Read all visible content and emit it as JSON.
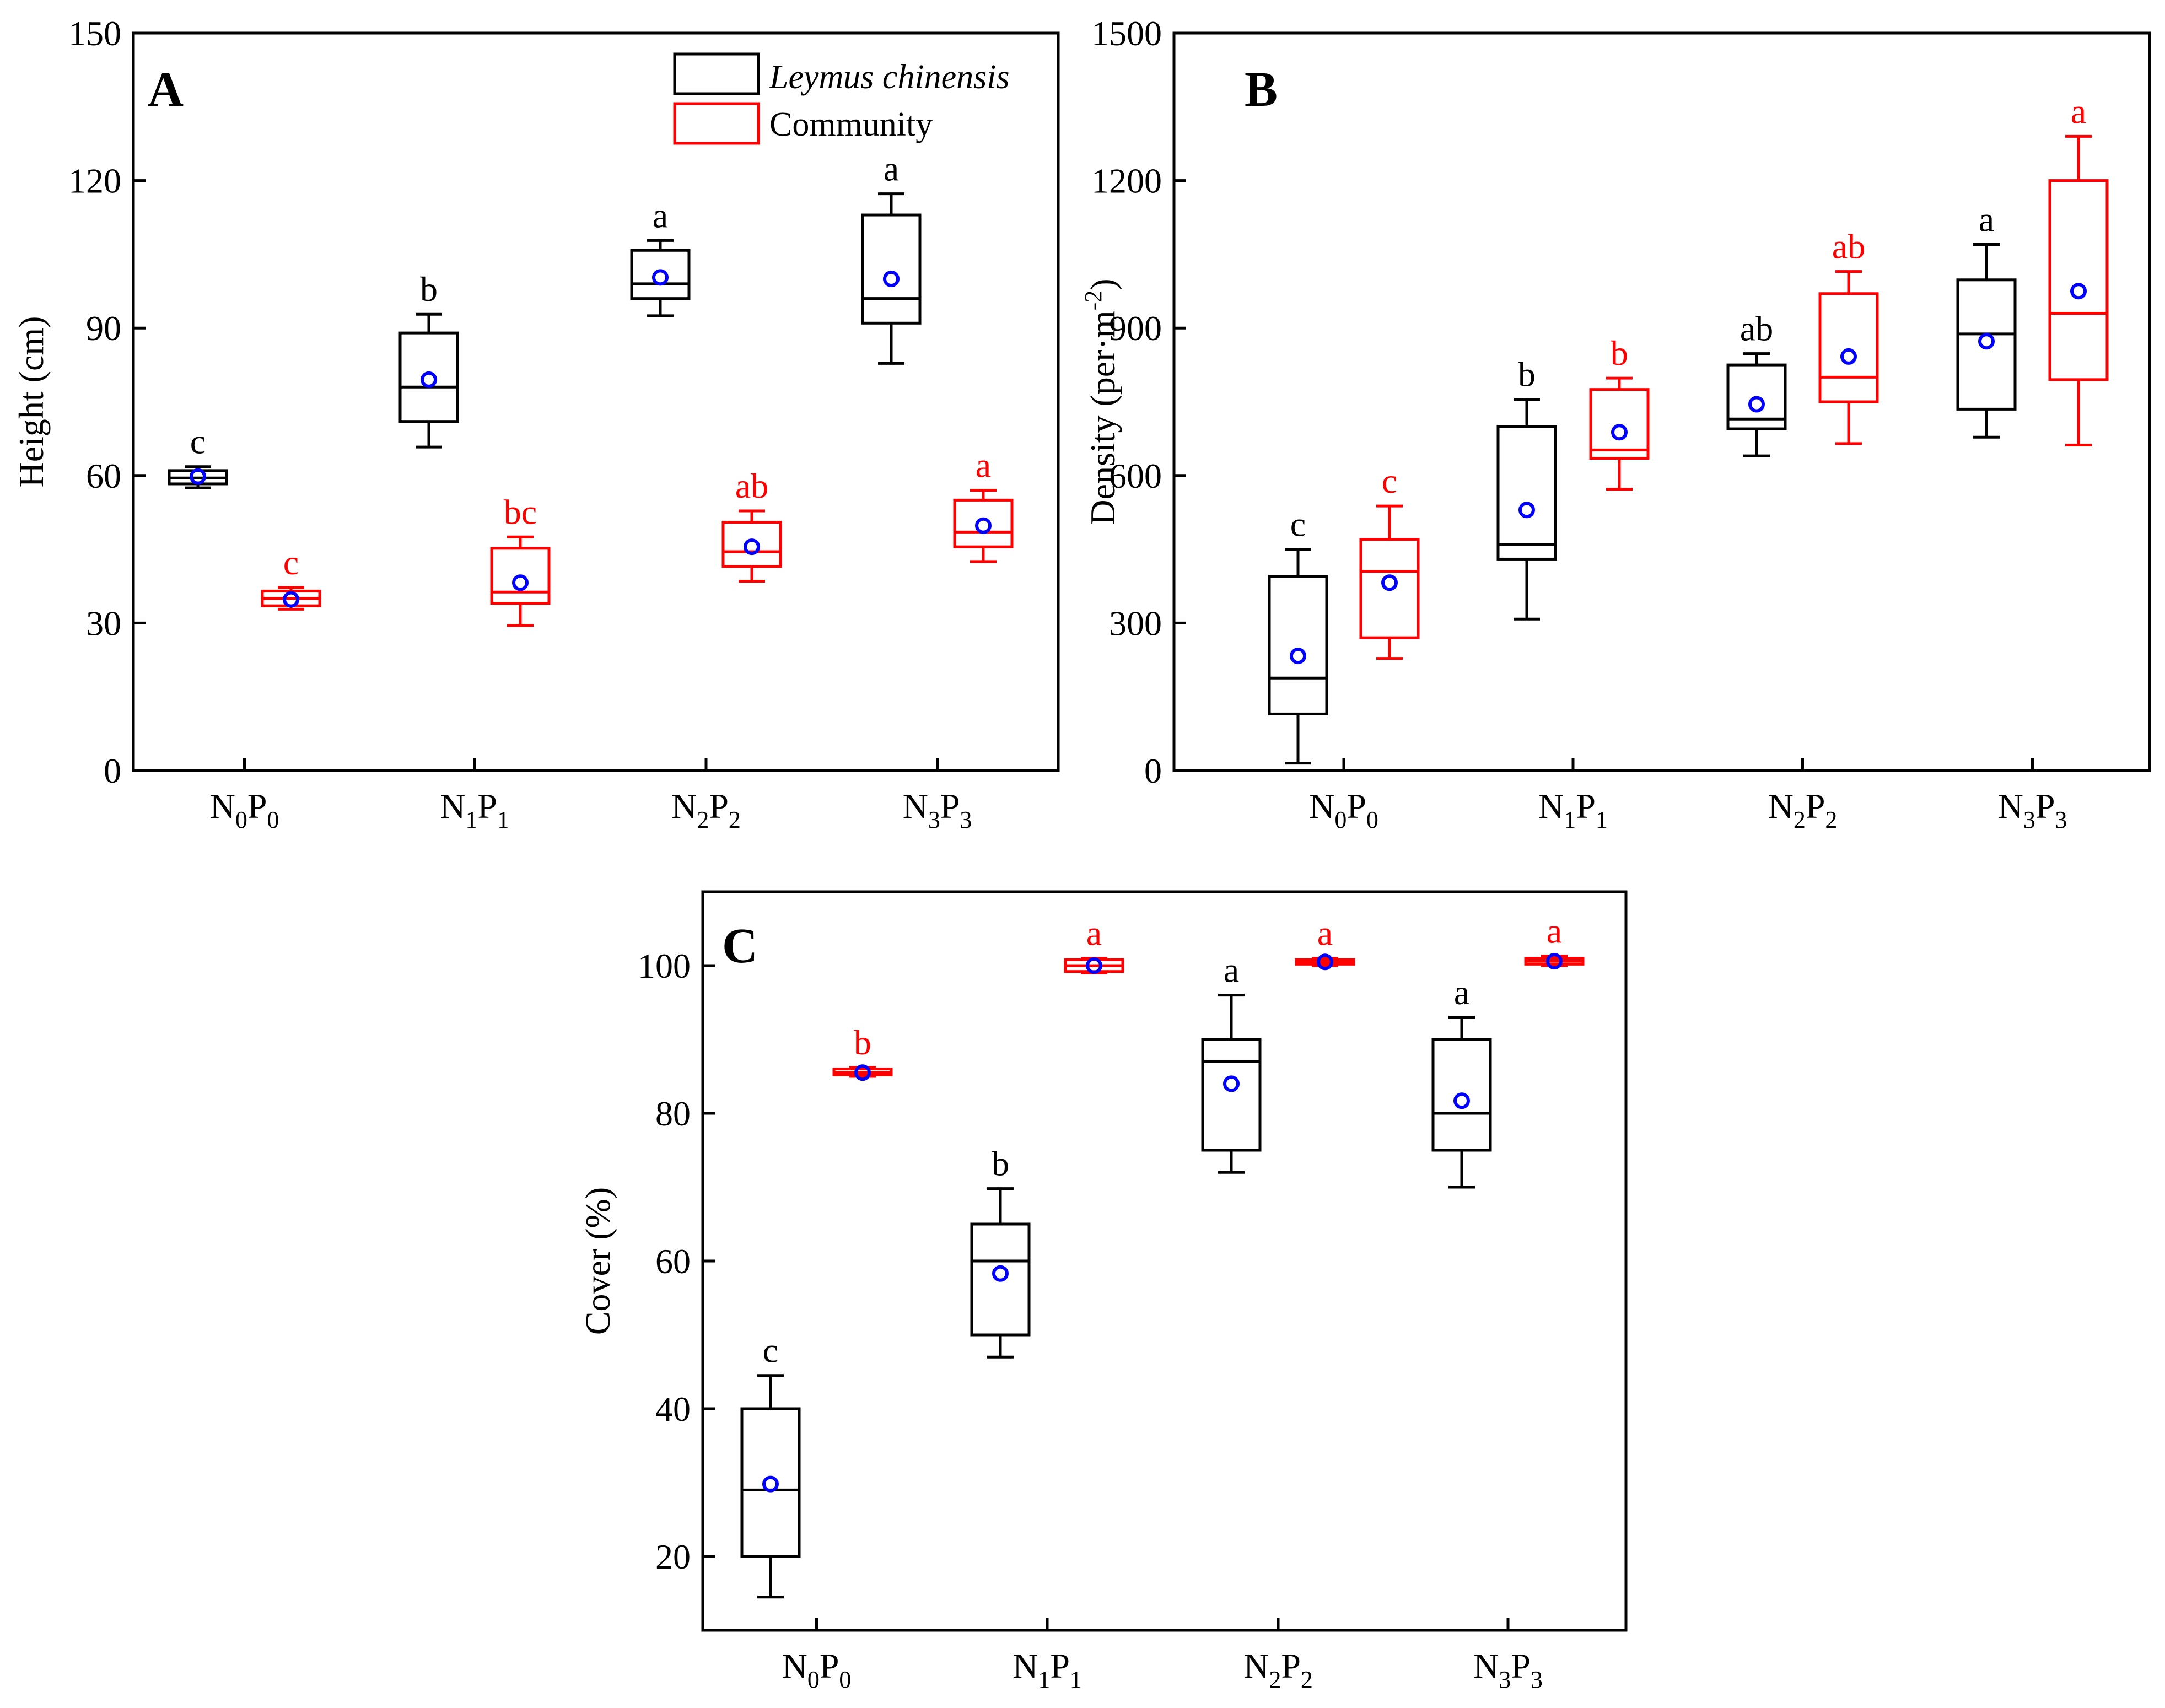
{
  "chart_data": [
    {
      "panel": "A",
      "type": "box",
      "ylabel": "Height (cm)",
      "ylim": [
        0,
        150
      ],
      "yticks": [
        0,
        30,
        60,
        90,
        120,
        150
      ],
      "categories": [
        {
          "base": "N",
          "sub1": "0",
          "mid": "P",
          "sub2": "0"
        },
        {
          "base": "N",
          "sub1": "1",
          "mid": "P",
          "sub2": "1"
        },
        {
          "base": "N",
          "sub1": "2",
          "mid": "P",
          "sub2": "2"
        },
        {
          "base": "N",
          "sub1": "3",
          "mid": "P",
          "sub2": "3"
        }
      ],
      "legend": [
        {
          "name": "Leymus chinensis",
          "color": "#000000",
          "italic": true
        },
        {
          "name": "Community",
          "color": "#ff0000",
          "italic": false
        }
      ],
      "series": [
        {
          "name": "Leymus chinensis",
          "color": "#000000",
          "boxes": [
            {
              "min": 57.5,
              "q1": 58.3,
              "median": 59.5,
              "q3": 61,
              "max": 61.8,
              "mean": 59.8,
              "label": "c"
            },
            {
              "min": 65.8,
              "q1": 71,
              "median": 78,
              "q3": 89,
              "max": 92.8,
              "mean": 79.5,
              "label": "b"
            },
            {
              "min": 92.5,
              "q1": 96,
              "median": 99,
              "q3": 105.8,
              "max": 107.8,
              "mean": 100.3,
              "label": "a"
            },
            {
              "min": 82.8,
              "q1": 91,
              "median": 96,
              "q3": 113,
              "max": 117.3,
              "mean": 100,
              "label": "a"
            }
          ]
        },
        {
          "name": "Community",
          "color": "#ff0000",
          "boxes": [
            {
              "min": 32.8,
              "q1": 33.5,
              "median": 35,
              "q3": 36.5,
              "max": 37.2,
              "mean": 34.8,
              "label": "c"
            },
            {
              "min": 29.5,
              "q1": 34,
              "median": 36.3,
              "q3": 45.2,
              "max": 47.5,
              "mean": 38.2,
              "label": "bc"
            },
            {
              "min": 38.5,
              "q1": 41.5,
              "median": 44.5,
              "q3": 50.5,
              "max": 52.8,
              "mean": 45.5,
              "label": "ab"
            },
            {
              "min": 42.5,
              "q1": 45.5,
              "median": 48.5,
              "q3": 55,
              "max": 57,
              "mean": 49.8,
              "label": "a"
            }
          ]
        }
      ]
    },
    {
      "panel": "B",
      "type": "box",
      "ylabel_main": "Density (per·m",
      "ylabel_sup": "-2",
      "ylabel_end": ")",
      "ylim": [
        0,
        1500
      ],
      "yticks": [
        0,
        300,
        600,
        900,
        1200,
        1500
      ],
      "categories": [
        {
          "base": "N",
          "sub1": "0",
          "mid": "P",
          "sub2": "0"
        },
        {
          "base": "N",
          "sub1": "1",
          "mid": "P",
          "sub2": "1"
        },
        {
          "base": "N",
          "sub1": "2",
          "mid": "P",
          "sub2": "2"
        },
        {
          "base": "N",
          "sub1": "3",
          "mid": "P",
          "sub2": "3"
        }
      ],
      "series": [
        {
          "name": "Leymus chinensis",
          "color": "#000000",
          "boxes": [
            {
              "min": 15,
              "q1": 115,
              "median": 188,
              "q3": 395,
              "max": 450,
              "mean": 233,
              "label": "c"
            },
            {
              "min": 308,
              "q1": 430,
              "median": 460,
              "q3": 700,
              "max": 755,
              "mean": 530,
              "label": "b"
            },
            {
              "min": 640,
              "q1": 695,
              "median": 715,
              "q3": 825,
              "max": 848,
              "mean": 745,
              "label": "ab"
            },
            {
              "min": 678,
              "q1": 735,
              "median": 888,
              "q3": 998,
              "max": 1070,
              "mean": 873,
              "label": "a"
            }
          ]
        },
        {
          "name": "Community",
          "color": "#ff0000",
          "boxes": [
            {
              "min": 228,
              "q1": 270,
              "median": 405,
              "q3": 470,
              "max": 538,
              "mean": 382,
              "label": "c"
            },
            {
              "min": 572,
              "q1": 635,
              "median": 652,
              "q3": 775,
              "max": 798,
              "mean": 688,
              "label": "b"
            },
            {
              "min": 665,
              "q1": 750,
              "median": 800,
              "q3": 970,
              "max": 1015,
              "mean": 842,
              "label": "ab"
            },
            {
              "min": 662,
              "q1": 795,
              "median": 930,
              "q3": 1200,
              "max": 1290,
              "mean": 975,
              "label": "a"
            }
          ]
        }
      ]
    },
    {
      "panel": "C",
      "type": "box",
      "ylabel": "Cover (%)",
      "ylim": [
        10,
        110
      ],
      "yticks": [
        20,
        40,
        60,
        80,
        100
      ],
      "categories": [
        {
          "base": "N",
          "sub1": "0",
          "mid": "P",
          "sub2": "0"
        },
        {
          "base": "N",
          "sub1": "1",
          "mid": "P",
          "sub2": "1"
        },
        {
          "base": "N",
          "sub1": "2",
          "mid": "P",
          "sub2": "2"
        },
        {
          "base": "N",
          "sub1": "3",
          "mid": "P",
          "sub2": "3"
        }
      ],
      "series": [
        {
          "name": "Leymus chinensis",
          "color": "#000000",
          "boxes": [
            {
              "min": 14.5,
              "q1": 20,
              "median": 29,
              "q3": 40,
              "max": 44.5,
              "mean": 29.8,
              "label": "c"
            },
            {
              "min": 47,
              "q1": 50,
              "median": 60,
              "q3": 65,
              "max": 69.8,
              "mean": 58.3,
              "label": "b"
            },
            {
              "min": 72,
              "q1": 75,
              "median": 87,
              "q3": 90,
              "max": 96,
              "mean": 84,
              "label": "a"
            },
            {
              "min": 70,
              "q1": 75,
              "median": 80,
              "q3": 90,
              "max": 93,
              "mean": 81.7,
              "label": "a"
            }
          ]
        },
        {
          "name": "Community",
          "color": "#ff0000",
          "boxes": [
            {
              "min": 85,
              "q1": 85.2,
              "median": 85.5,
              "q3": 86,
              "max": 86.2,
              "mean": 85.5,
              "label": "b"
            },
            {
              "min": 99,
              "q1": 99.2,
              "median": 100,
              "q3": 100.8,
              "max": 101,
              "mean": 100,
              "label": "a"
            },
            {
              "min": 100,
              "q1": 100.2,
              "median": 100.5,
              "q3": 100.8,
              "max": 101,
              "mean": 100.5,
              "label": "a"
            },
            {
              "min": 100,
              "q1": 100.2,
              "median": 100.6,
              "q3": 101,
              "max": 101.3,
              "mean": 100.6,
              "label": "a"
            }
          ]
        }
      ]
    }
  ],
  "colors": {
    "axis": "#000000",
    "mean_marker": "#0000ff",
    "leymus": "#000000",
    "community": "#ff0000"
  }
}
